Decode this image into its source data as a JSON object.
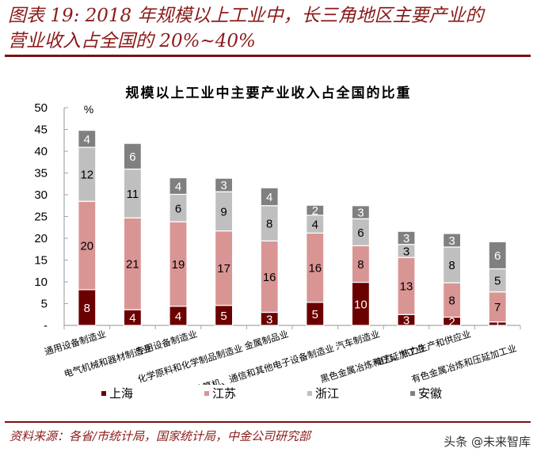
{
  "figure": {
    "title_line1": "图表 19: 2018 年规模以上工业中，长三角地区主要产业的",
    "title_line2": "营业收入占全国的 20%~40%",
    "source": "资料来源：各省/市统计局，国家统计局，中金公司研究部",
    "watermark": "头条 @未来智库"
  },
  "colors": {
    "shanghai": "#6B0000",
    "jiangsu": "#D99594",
    "zhejiang": "#BFBFBF",
    "anhui": "#808080",
    "title": "#8B1A1A",
    "rule": "#7B1111",
    "axis": "#A6A6A6"
  },
  "chart_data": {
    "type": "bar",
    "stacked": true,
    "title": "规模以上工业中主要产业收入占全国的比重",
    "xlabel": "",
    "ylabel": "%",
    "ylim": [
      0,
      50
    ],
    "yticks": [
      "-",
      "5",
      "10",
      "15",
      "20",
      "25",
      "30",
      "35",
      "40",
      "45",
      "50"
    ],
    "grid": false,
    "legend_position": "bottom",
    "categories": [
      "通用设备制造业",
      "电气机械和器材制造业",
      "专用设备制造业",
      "化学原料和化学制品制造业",
      "金属制品业",
      "计算机、通信和其他电子设备制造业",
      "汽车制造业",
      "黑色金属冶炼和压延加工业",
      "电力、热力生产和供应业",
      "有色金属冶炼和压延加工业"
    ],
    "series": [
      {
        "name": "上海",
        "color": "#6B0000",
        "label_color": "#FFFFFF",
        "values": [
          8.2,
          3.6,
          4.4,
          4.6,
          3.0,
          5.3,
          9.9,
          2.5,
          1.9,
          0.8
        ],
        "labels": [
          "8",
          "4",
          "4",
          "5",
          "3",
          "5",
          "10",
          "3",
          "2",
          "1"
        ]
      },
      {
        "name": "江苏",
        "color": "#D99594",
        "label_color": "#000000",
        "values": [
          20.3,
          21.1,
          19.4,
          17.1,
          16.4,
          15.9,
          8.4,
          13.1,
          7.9,
          6.9
        ],
        "labels": [
          "20",
          "21",
          "19",
          "17",
          "16",
          "16",
          "8",
          "13",
          "8",
          "7"
        ]
      },
      {
        "name": "浙江",
        "color": "#BFBFBF",
        "label_color": "#000000",
        "values": [
          12.4,
          11.2,
          6.3,
          9.0,
          8.1,
          4.1,
          6.2,
          3.0,
          8.2,
          5.3
        ],
        "labels": [
          "12",
          "11",
          "6",
          "9",
          "8",
          "4",
          "6",
          "3",
          "8",
          "5"
        ]
      },
      {
        "name": "安徽",
        "color": "#808080",
        "label_color": "#FFFFFF",
        "values": [
          3.9,
          5.9,
          3.8,
          3.1,
          4.1,
          2.3,
          3.0,
          3.0,
          3.1,
          6.2
        ],
        "labels": [
          "4",
          "6",
          "4",
          "3",
          "4",
          "2",
          "3",
          "3",
          "3",
          "6"
        ]
      }
    ]
  }
}
